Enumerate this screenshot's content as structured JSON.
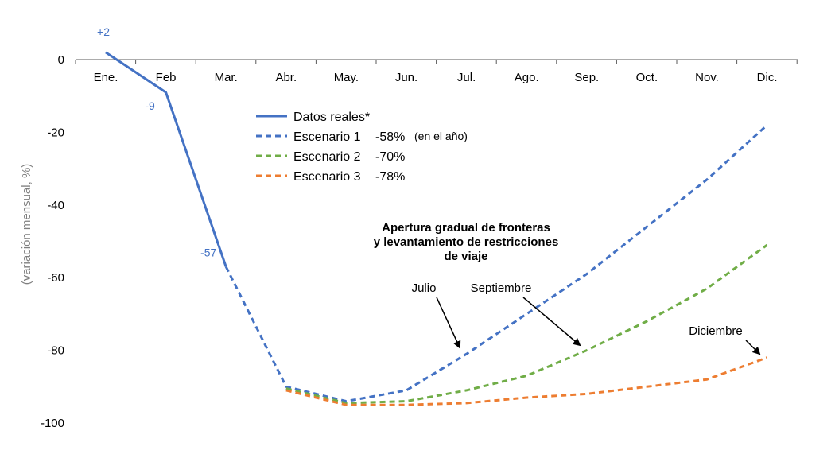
{
  "chart_data": {
    "type": "line",
    "title": "",
    "xlabel": "",
    "ylabel": "(variación mensual, %)",
    "categories": [
      "Ene.",
      "Feb",
      "Mar.",
      "Abr.",
      "May.",
      "Jun.",
      "Jul.",
      "Ago.",
      "Sep.",
      "Oct.",
      "Nov.",
      "Dic."
    ],
    "ylim": [
      -100,
      0
    ],
    "yticks": [
      0,
      -20,
      -40,
      -60,
      -80,
      -100
    ],
    "grid": false,
    "legend_position": "center",
    "series": [
      {
        "name": "Datos reales*",
        "style": "solid",
        "color": "#4472c4",
        "values": [
          2,
          -9,
          -57,
          null,
          null,
          null,
          null,
          null,
          null,
          null,
          null,
          null
        ]
      },
      {
        "name": "Escenario 1",
        "style": "dashed",
        "color": "#4472c4",
        "values": [
          null,
          null,
          -57,
          -90,
          -94,
          -91,
          -81,
          -70,
          -59,
          -46,
          -33,
          -18
        ]
      },
      {
        "name": "Escenario 2",
        "style": "dashed",
        "color": "#70ad47",
        "values": [
          null,
          null,
          null,
          -90.5,
          -94.5,
          -94,
          -91,
          -87,
          -80,
          -72,
          -63,
          -51
        ]
      },
      {
        "name": "Escenario 3",
        "style": "dashed",
        "color": "#ed7d31",
        "values": [
          null,
          null,
          null,
          -91,
          -95,
          -95,
          -94.5,
          -93,
          -92,
          -90,
          -88,
          -82
        ]
      }
    ],
    "data_labels": [
      {
        "text": "+2",
        "category": "Ene.",
        "value": 2
      },
      {
        "text": "-9",
        "category": "Feb",
        "value": -9
      },
      {
        "text": "-57",
        "category": "Mar.",
        "value": -57
      }
    ],
    "legend": [
      {
        "label": "Datos reales*",
        "value": "",
        "note": ""
      },
      {
        "label": "Escenario 1",
        "value": "-58%",
        "note": "(en el año)"
      },
      {
        "label": "Escenario 2",
        "value": "-70%",
        "note": ""
      },
      {
        "label": "Escenario 3",
        "value": "-78%",
        "note": ""
      }
    ],
    "annotations": {
      "title_lines": [
        "Apertura gradual de fronteras",
        "y levantamiento de restricciones",
        "de viaje"
      ],
      "pointers": [
        {
          "text": "Julio",
          "series": "Escenario 1",
          "category": "Jul."
        },
        {
          "text": "Septiembre",
          "series": "Escenario 2",
          "category": "Sep."
        },
        {
          "text": "Diciembre",
          "series": "Escenario 3",
          "category": "Dic."
        }
      ]
    }
  }
}
